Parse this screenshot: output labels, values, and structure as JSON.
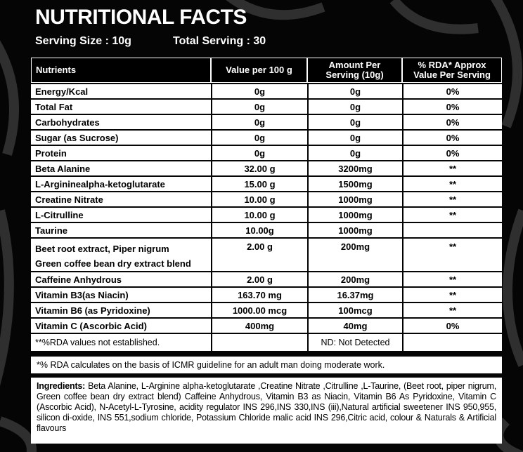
{
  "title": "NUTRITIONAL FACTS",
  "serving_size": "Serving Size : 10g",
  "total_serving": "Total Serving : 30",
  "table": {
    "header": [
      "Nutrients",
      "Value per 100 g",
      "Amount Per Serving (10g)",
      "% RDA* Approx Value Per Serving"
    ],
    "rows": [
      {
        "nutrient": "Energy/Kcal",
        "per_100g": "0g",
        "per_serving": "0g",
        "rda": "0%"
      },
      {
        "nutrient": "Total Fat",
        "per_100g": "0g",
        "per_serving": "0g",
        "rda": "0%"
      },
      {
        "nutrient": "Carbohydrates",
        "per_100g": "0g",
        "per_serving": "0g",
        "rda": "0%"
      },
      {
        "nutrient": "Sugar (as Sucrose)",
        "per_100g": "0g",
        "per_serving": "0g",
        "rda": "0%"
      },
      {
        "nutrient": "Protein",
        "per_100g": "0g",
        "per_serving": "0g",
        "rda": "0%"
      },
      {
        "nutrient": "Beta Alanine",
        "per_100g": "32.00 g",
        "per_serving": "3200mg",
        "rda": "**"
      },
      {
        "nutrient": "L-Argininealpha-ketoglutarate",
        "per_100g": "15.00 g",
        "per_serving": "1500mg",
        "rda": "**"
      },
      {
        "nutrient": "Creatine Nitrate",
        "per_100g": "10.00 g",
        "per_serving": "1000mg",
        "rda": "**"
      },
      {
        "nutrient": "L-Citrulline",
        "per_100g": "10.00 g",
        "per_serving": "1000mg",
        "rda": "**"
      },
      {
        "nutrient": "Taurine",
        "per_100g": "10.00g",
        "per_serving": "1000mg"
      },
      {
        "nutrient": "Beet root extract, Piper nigrum",
        "nutrient_line2": "Green coffee bean dry extract blend",
        "per_100g": "2.00 g",
        "per_serving": "200mg",
        "rda": "**"
      },
      {
        "nutrient": "Caffeine Anhydrous",
        "per_100g": "2.00 g",
        "per_serving": "200mg",
        "rda": "**"
      },
      {
        "nutrient": "Vitamin B3(as Niacin)",
        "per_100g": "163.70 mg",
        "per_serving": "16.37mg",
        "rda": "**"
      },
      {
        "nutrient": "Vitamin B6 (as Pyridoxine)",
        "per_100g": "1000.00 mcg",
        "per_serving": "100mcg",
        "rda": "**"
      },
      {
        "nutrient": "Vitamin C (Ascorbic Acid)",
        "per_100g": "400mg",
        "per_serving": "40mg",
        "rda": "0%"
      }
    ]
  },
  "notes": {
    "rda_not_established": "**%RDA values not established.",
    "not_detected": "ND: Not Detected",
    "rda_basis": "*% RDA calculates on the basis of ICMR guideline for an adult man doing moderate work."
  },
  "ingredients": {
    "label": "Ingredients:",
    "text": "Beta  Alanine, L-Arginine alpha-ketoglutarate ,Creatine Nitrate ,Citrulline ,L-Taurine, (Beet root, piper nigrum, Green coffee bean dry extract blend) Caffeine Anhydrous, Vitamin B3 as Niacin, Vitamin B6 As Pyridoxine, Vitamin C (Ascorbic Acid), N-Acetyl-L-Tyrosine, acidity regulator INS 296,INS 330,INS (iii),Natural artificial sweetener INS 950,955, silicon di-oxide, INS 551,sodium chloride, Potassium Chloride malic acid INS 296,Citric acid, colour & Naturals & Artificial flavours"
  }
}
